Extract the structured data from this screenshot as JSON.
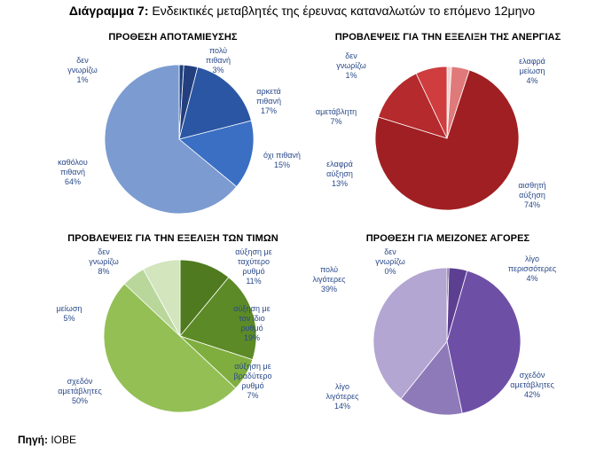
{
  "header": {
    "title_bold": "Διάγραμμα 7:",
    "title_rest": "Ενδεικτικές μεταβλητές της έρευνας καταναλωτών το επόμενο 12μηνο"
  },
  "footer": {
    "source_label": "Πηγή:",
    "source_value": "ΙΟΒΕ"
  },
  "chart_data": [
    {
      "type": "pie",
      "title": "ΠΡΟΘΕΣΗ ΑΠΟΤΑΜΙΕΥΣΗΣ",
      "slices": [
        {
          "label": [
            "δεν",
            "γνωρίζω",
            "1%"
          ],
          "value": 1,
          "color": "#1e3f7a"
        },
        {
          "label": [
            "πολύ",
            "πιθανή",
            "3%"
          ],
          "value": 3,
          "color": "#233f7e"
        },
        {
          "label": [
            "αρκετά",
            "πιθανή",
            "17%"
          ],
          "value": 17,
          "color": "#2b56a3"
        },
        {
          "label": [
            "όχι πιθανή",
            "15%"
          ],
          "value": 15,
          "color": "#3a6fc4"
        },
        {
          "label": [
            "καθόλου",
            "πιθανή",
            "64%"
          ],
          "value": 64,
          "color": "#7c9bd1"
        }
      ]
    },
    {
      "type": "pie",
      "title": "ΠΡΟΒΛΕΨΕΙΣ ΓΙΑ ΤΗΝ ΕΞΕΛΙΞΗ ΤΗΣ ΑΝΕΡΓΙΑΣ",
      "slices": [
        {
          "label": [
            "δεν",
            "γνωρίζω",
            "1%"
          ],
          "value": 1,
          "color": "#f0d0d0"
        },
        {
          "label": [
            "ελαφρά",
            "μείωση",
            "4%"
          ],
          "value": 4,
          "color": "#e07a7a"
        },
        {
          "label": [
            "αισθητή",
            "αύξηση",
            "74%"
          ],
          "value": 74,
          "color": "#a01f22"
        },
        {
          "label": [
            "ελαφρά",
            "αύξηση",
            "13%"
          ],
          "value": 13,
          "color": "#b52a2c"
        },
        {
          "label": [
            "αμετάβλητη",
            "7%"
          ],
          "value": 7,
          "color": "#cf3d3f"
        }
      ]
    },
    {
      "type": "pie",
      "title": "ΠΡΟΒΛΕΨΕΙΣ ΓΙΑ ΤΗΝ ΕΞΕΛΙΞΗ ΤΩΝ ΤΙΜΩΝ",
      "slices": [
        {
          "label": [
            "αύξηση με",
            "ταχύτερο",
            "ρυθμό",
            "11%"
          ],
          "value": 11,
          "color": "#4f7a1f"
        },
        {
          "label": [
            "αύξηση με",
            "τον ίδιο",
            "ρυθμό",
            "19%"
          ],
          "value": 19,
          "color": "#5c8a26"
        },
        {
          "label": [
            "αύξηση με",
            "βραδύτερο",
            "ρυθμό",
            "7%"
          ],
          "value": 7,
          "color": "#7fae3e"
        },
        {
          "label": [
            "σχεδόν",
            "αμετάβλητες",
            "50%"
          ],
          "value": 50,
          "color": "#93bf55"
        },
        {
          "label": [
            "μείωση",
            "5%"
          ],
          "value": 5,
          "color": "#b9d79a"
        },
        {
          "label": [
            "δεν",
            "γνωρίζω",
            "8%"
          ],
          "value": 8,
          "color": "#d2e5bd"
        }
      ]
    },
    {
      "type": "pie",
      "title": "ΠΡΟΘΕΣΗ ΓΙΑ ΜΕΙΖΟΝΕΣ ΑΓΟΡΕΣ",
      "slices": [
        {
          "label": [
            "δεν",
            "γνωρίζω",
            "0%"
          ],
          "value": 0.4,
          "color": "#4b3479"
        },
        {
          "label": [
            "λίγο",
            "περισσότερες",
            "4%"
          ],
          "value": 4,
          "color": "#5d3f92"
        },
        {
          "label": [
            "σχεδόν",
            "αμετάβλητες",
            "42%"
          ],
          "value": 42,
          "color": "#6e4fa6"
        },
        {
          "label": [
            "λίγο",
            "λιγότερες",
            "14%"
          ],
          "value": 14,
          "color": "#8f7ab9"
        },
        {
          "label": [
            "πολύ",
            "λιγότερες",
            "39%"
          ],
          "value": 39,
          "color": "#b3a6d2"
        }
      ]
    }
  ]
}
